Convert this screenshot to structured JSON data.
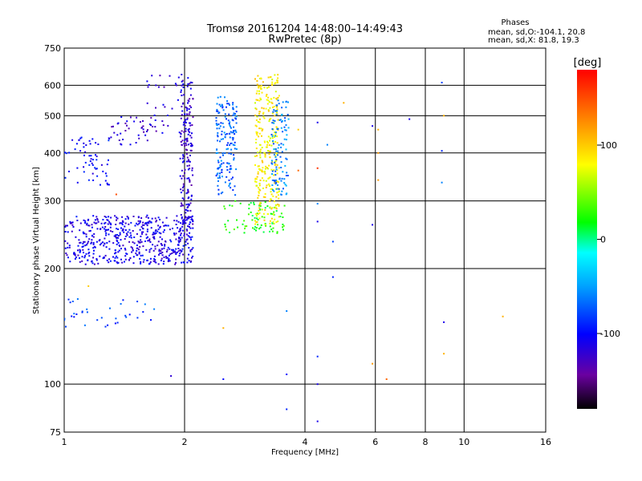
{
  "header": {
    "title": "Tromsø 20161204 14:48:00–14:49:43",
    "subtitle": "RwPretec (8p)",
    "phases_title": "Phases",
    "phases_o": "mean, sd,O:-104.1, 20.8",
    "phases_x": "mean, sd,X:  81.8, 19.3"
  },
  "chart_data": {
    "type": "scatter",
    "xlabel": "Frequency [MHz]",
    "ylabel": "Stationary phase Virtual Height [km]",
    "xscale": "log",
    "yscale": "log",
    "xlim": [
      1,
      16
    ],
    "ylim": [
      75,
      750
    ],
    "grid": true,
    "x_ticks": [
      1,
      2,
      4,
      6,
      8,
      10,
      16
    ],
    "x_tick_labels": [
      "1",
      "2",
      "4",
      "6",
      "8",
      "10",
      "16"
    ],
    "y_ticks": [
      75,
      100,
      200,
      300,
      400,
      500,
      600,
      750
    ],
    "y_tick_labels": [
      "75",
      "100",
      "200",
      "300",
      "400",
      "500",
      "600",
      "750"
    ],
    "colorbar": {
      "label": "[deg]",
      "range": [
        -180,
        180
      ],
      "ticks": [
        100,
        0,
        -100
      ],
      "tick_labels": [
        "100",
        "0",
        "-100"
      ]
    },
    "trace_groups": [
      {
        "f_range": [
          1.0,
          2.1
        ],
        "h_range": [
          205,
          275
        ],
        "phase": -110,
        "count": 550
      },
      {
        "f_range": [
          1.0,
          1.3
        ],
        "h_range": [
          330,
          440
        ],
        "phase": -100,
        "count": 60
      },
      {
        "f_range": [
          1.3,
          1.7
        ],
        "h_range": [
          420,
          500
        ],
        "phase": -120,
        "count": 40
      },
      {
        "f_range": [
          1.6,
          2.05
        ],
        "h_range": [
          450,
          640
        ],
        "phase": -115,
        "count": 40
      },
      {
        "f_range": [
          1.95,
          2.1
        ],
        "h_range": [
          250,
          620
        ],
        "phase": -120,
        "count": 180
      },
      {
        "f_range": [
          2.4,
          2.7
        ],
        "h_range": [
          310,
          560
        ],
        "phase": -70,
        "count": 170
      },
      {
        "f_range": [
          2.5,
          3.6
        ],
        "h_range": [
          245,
          300
        ],
        "phase": 20,
        "count": 80
      },
      {
        "f_range": [
          3.0,
          3.45
        ],
        "h_range": [
          260,
          640
        ],
        "phase": 85,
        "count": 300
      },
      {
        "f_range": [
          3.3,
          3.65
        ],
        "h_range": [
          310,
          550
        ],
        "phase": -60,
        "count": 110
      },
      {
        "f_range": [
          1.0,
          1.7
        ],
        "h_range": [
          140,
          170
        ],
        "phase": -80,
        "count": 35
      }
    ],
    "isolated_points": [
      {
        "x": 1.35,
        "y": 312,
        "phase": 150
      },
      {
        "x": 1.15,
        "y": 180,
        "phase": 100
      },
      {
        "x": 1.85,
        "y": 105,
        "phase": -120
      },
      {
        "x": 2.5,
        "y": 140,
        "phase": 110
      },
      {
        "x": 2.5,
        "y": 103,
        "phase": -100
      },
      {
        "x": 3.85,
        "y": 360,
        "phase": 140
      },
      {
        "x": 3.85,
        "y": 460,
        "phase": 100
      },
      {
        "x": 3.6,
        "y": 155,
        "phase": -60
      },
      {
        "x": 3.6,
        "y": 106,
        "phase": -100
      },
      {
        "x": 3.6,
        "y": 86,
        "phase": -90
      },
      {
        "x": 4.3,
        "y": 480,
        "phase": -110
      },
      {
        "x": 4.3,
        "y": 365,
        "phase": 160
      },
      {
        "x": 4.3,
        "y": 295,
        "phase": -60
      },
      {
        "x": 4.3,
        "y": 265,
        "phase": -110
      },
      {
        "x": 4.3,
        "y": 118,
        "phase": -90
      },
      {
        "x": 4.3,
        "y": 100,
        "phase": -110
      },
      {
        "x": 4.3,
        "y": 80,
        "phase": -110
      },
      {
        "x": 4.55,
        "y": 420,
        "phase": -60
      },
      {
        "x": 4.7,
        "y": 235,
        "phase": -80
      },
      {
        "x": 4.7,
        "y": 190,
        "phase": -90
      },
      {
        "x": 5.0,
        "y": 540,
        "phase": 110
      },
      {
        "x": 5.9,
        "y": 470,
        "phase": -110
      },
      {
        "x": 6.1,
        "y": 460,
        "phase": 110
      },
      {
        "x": 6.1,
        "y": 400,
        "phase": 120
      },
      {
        "x": 6.1,
        "y": 340,
        "phase": 120
      },
      {
        "x": 5.9,
        "y": 260,
        "phase": -110
      },
      {
        "x": 5.9,
        "y": 113,
        "phase": 120
      },
      {
        "x": 6.4,
        "y": 103,
        "phase": 140
      },
      {
        "x": 7.3,
        "y": 490,
        "phase": -110
      },
      {
        "x": 8.8,
        "y": 610,
        "phase": -80
      },
      {
        "x": 8.9,
        "y": 500,
        "phase": 110
      },
      {
        "x": 8.8,
        "y": 405,
        "phase": -90
      },
      {
        "x": 8.8,
        "y": 335,
        "phase": -60
      },
      {
        "x": 8.9,
        "y": 145,
        "phase": -110
      },
      {
        "x": 8.9,
        "y": 120,
        "phase": 110
      },
      {
        "x": 12.5,
        "y": 150,
        "phase": 110
      }
    ]
  },
  "colors": {
    "grid": "#000000",
    "axes": "#000000",
    "background": "#ffffff"
  }
}
